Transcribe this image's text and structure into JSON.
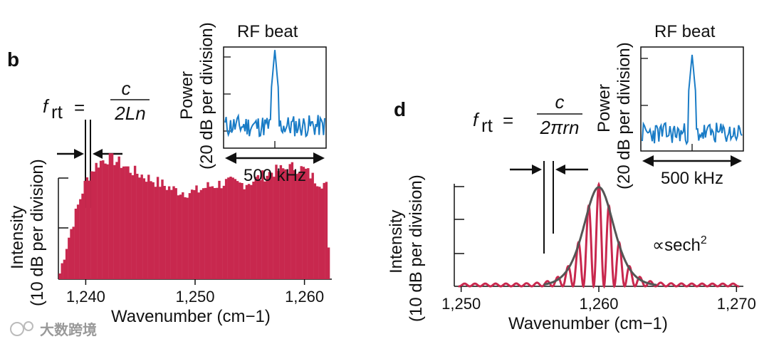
{
  "chart_data": [
    {
      "type": "line",
      "panel": "b",
      "title": "",
      "xlabel": "Wavenumber (cm−1)",
      "ylabel_line1": "Intensity",
      "ylabel_line2": "(10 dB per division)",
      "x_ticks": [
        1240,
        1250,
        1260
      ],
      "x_tick_labels": [
        "1,240",
        "1,250",
        "1,260"
      ],
      "xlim": [
        1237.5,
        1262.5
      ],
      "ylim_divisions": [
        0,
        3
      ],
      "series": [
        {
          "name": "frequency comb spectrum",
          "color": "#c8284e",
          "envelope_x": [
            1237.5,
            1238.0,
            1238.4,
            1238.8,
            1239.2,
            1239.6,
            1240.0,
            1240.5,
            1241.0,
            1241.5,
            1242.0,
            1242.5,
            1243.0,
            1244.0,
            1245.0,
            1246.0,
            1247.0,
            1248.0,
            1249.0,
            1250.0,
            1251.0,
            1252.0,
            1253.0,
            1254.0,
            1255.0,
            1256.0,
            1257.0,
            1258.0,
            1259.0,
            1260.0,
            1261.0,
            1262.0,
            1262.3
          ],
          "envelope_y": [
            0.0,
            0.45,
            0.8,
            1.1,
            1.4,
            1.7,
            1.95,
            2.15,
            2.3,
            2.38,
            2.42,
            2.4,
            2.35,
            2.2,
            2.1,
            2.0,
            1.9,
            1.8,
            1.75,
            1.75,
            1.85,
            1.9,
            1.95,
            1.9,
            1.95,
            2.05,
            2.15,
            2.2,
            2.25,
            2.2,
            2.0,
            1.9,
            0.0
          ]
        }
      ],
      "equation": {
        "lhs_f": "f",
        "lhs_sub": "rt",
        "equals": "=",
        "numerator": "c",
        "denominator": "2Ln"
      },
      "inset": {
        "title": "RF beat",
        "ylabel_line1": "Power",
        "ylabel_line2": "(20 dB per division)",
        "span_label": "500 kHz",
        "peak_position": 0.5,
        "noise_floor_div": 0.6,
        "peak_div": 2.65,
        "color": "#1a7cc6"
      }
    },
    {
      "type": "line",
      "panel": "d",
      "title": "",
      "xlabel": "Wavenumber (cm−1)",
      "ylabel_line1": "Intensity",
      "ylabel_line2": "(10 dB per division)",
      "x_ticks": [
        1250,
        1260,
        1270
      ],
      "x_tick_labels": [
        "1,250",
        "1,260",
        "1,270"
      ],
      "xlim": [
        1249.5,
        1270.5
      ],
      "ylim_divisions": [
        0,
        3
      ],
      "series": [
        {
          "name": "comb spectrum",
          "color": "#c8284e",
          "center": 1260.0,
          "tooth_spacing": 0.75,
          "peak_div": 2.9,
          "width": 2.6
        },
        {
          "name": "sech^2 fit",
          "color": "#555555",
          "center": 1260.0,
          "peak_div": 2.9,
          "width": 2.6
        }
      ],
      "fit_label": "∝sech",
      "fit_label_sup": "2",
      "equation": {
        "lhs_f": "f",
        "lhs_sub": "rt",
        "equals": "=",
        "numerator": "c",
        "denominator": "2πrn"
      },
      "inset": {
        "title": "RF beat",
        "ylabel_line1": "Power",
        "ylabel_line2": "(20 dB per division)",
        "span_label": "500 kHz",
        "peak_position": 0.5,
        "noise_floor_div": 0.5,
        "peak_div": 2.7,
        "color": "#1a7cc6"
      }
    }
  ],
  "panels": {
    "b_letter": "b",
    "d_letter": "d"
  },
  "watermark": "大数跨境"
}
